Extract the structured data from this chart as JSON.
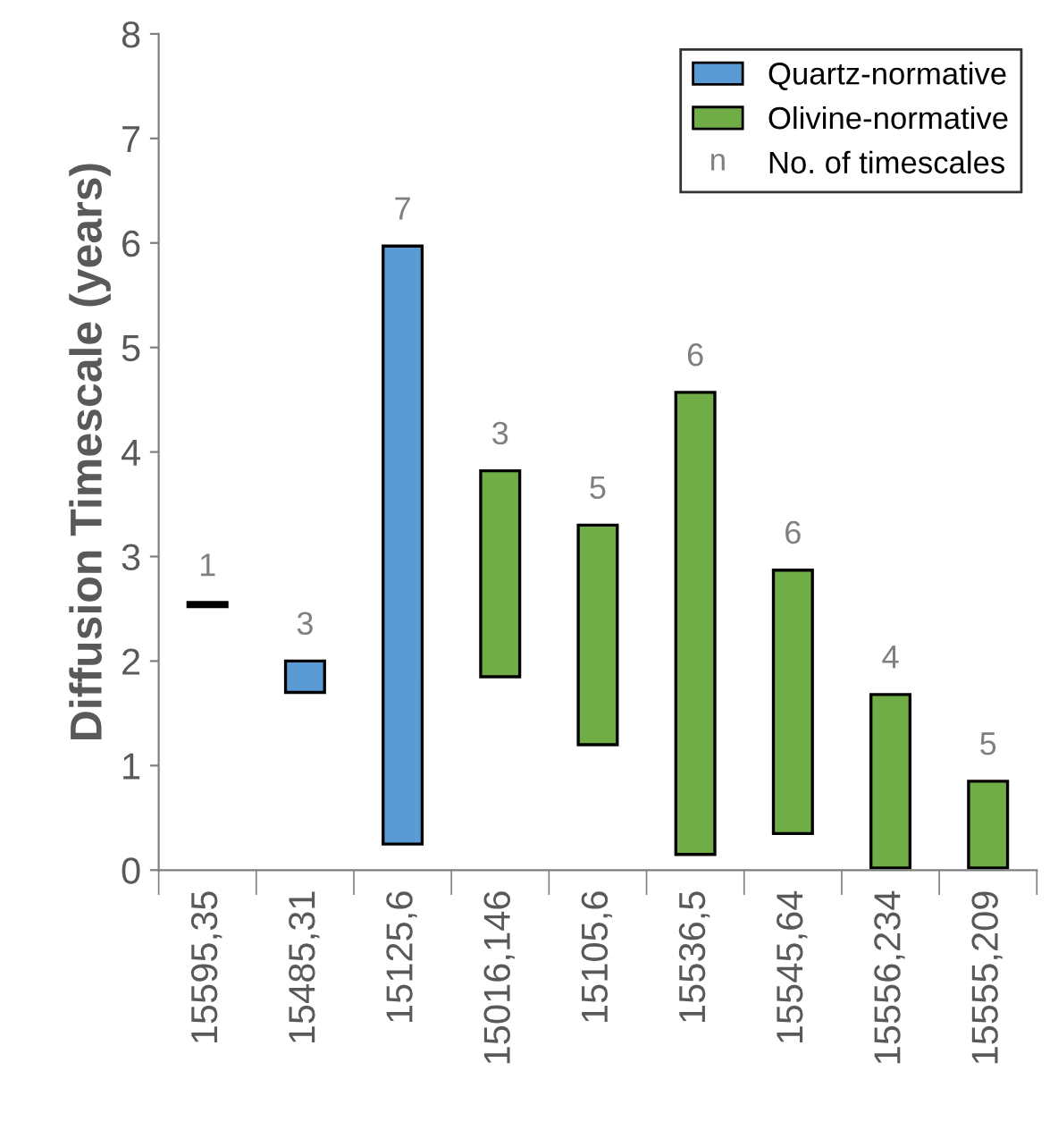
{
  "chart_data": {
    "type": "bar",
    "ylabel": "Diffusion Timescale (years)",
    "categories": [
      "15595,35",
      "15485,31",
      "15125,6",
      "15016,146",
      "15105,6",
      "15536,5",
      "15545,64",
      "15556,234",
      "15555,209"
    ],
    "series": [
      {
        "color": "#000000",
        "base": [
          2.52,
          null,
          null,
          null,
          null,
          null,
          null,
          null,
          null
        ],
        "values": [
          0.04,
          null,
          null,
          null,
          null,
          null,
          null,
          null,
          null
        ]
      },
      {
        "name": "Quartz-normative",
        "color": "#5b9bd5",
        "base": [
          null,
          1.7,
          0.25,
          null,
          null,
          null,
          null,
          null,
          null
        ],
        "values": [
          null,
          0.3,
          5.72,
          null,
          null,
          null,
          null,
          null,
          null
        ]
      },
      {
        "name": "Olivine-normative",
        "color": "#70ad47",
        "base": [
          null,
          null,
          null,
          1.85,
          1.2,
          0.15,
          0.35,
          0.02,
          0.02
        ],
        "values": [
          null,
          null,
          null,
          1.97,
          2.1,
          4.42,
          2.52,
          1.66,
          0.83
        ]
      }
    ],
    "ylim": [
      0,
      8
    ],
    "yticks": [
      0,
      1,
      2,
      3,
      4,
      5,
      6,
      7,
      8
    ],
    "legend": "top right",
    "annotations": [
      {
        "text": "1",
        "x": "15595,35",
        "y": 2.56
      },
      {
        "text": "3",
        "x": "15485,31",
        "y": 2.0
      },
      {
        "text": "7",
        "x": "15125,6",
        "y": 5.97
      },
      {
        "text": "3",
        "x": "15016,146",
        "y": 3.82
      },
      {
        "text": "5",
        "x": "15105,6",
        "y": 3.3
      },
      {
        "text": "6",
        "x": "15536,5",
        "y": 4.57
      },
      {
        "text": "6",
        "x": "15545,64",
        "y": 2.87
      },
      {
        "text": "4",
        "x": "15556,234",
        "y": 1.68
      },
      {
        "text": "5",
        "x": "15555,209",
        "y": 0.85
      },
      "n",
      "No. of timescales"
    ]
  }
}
